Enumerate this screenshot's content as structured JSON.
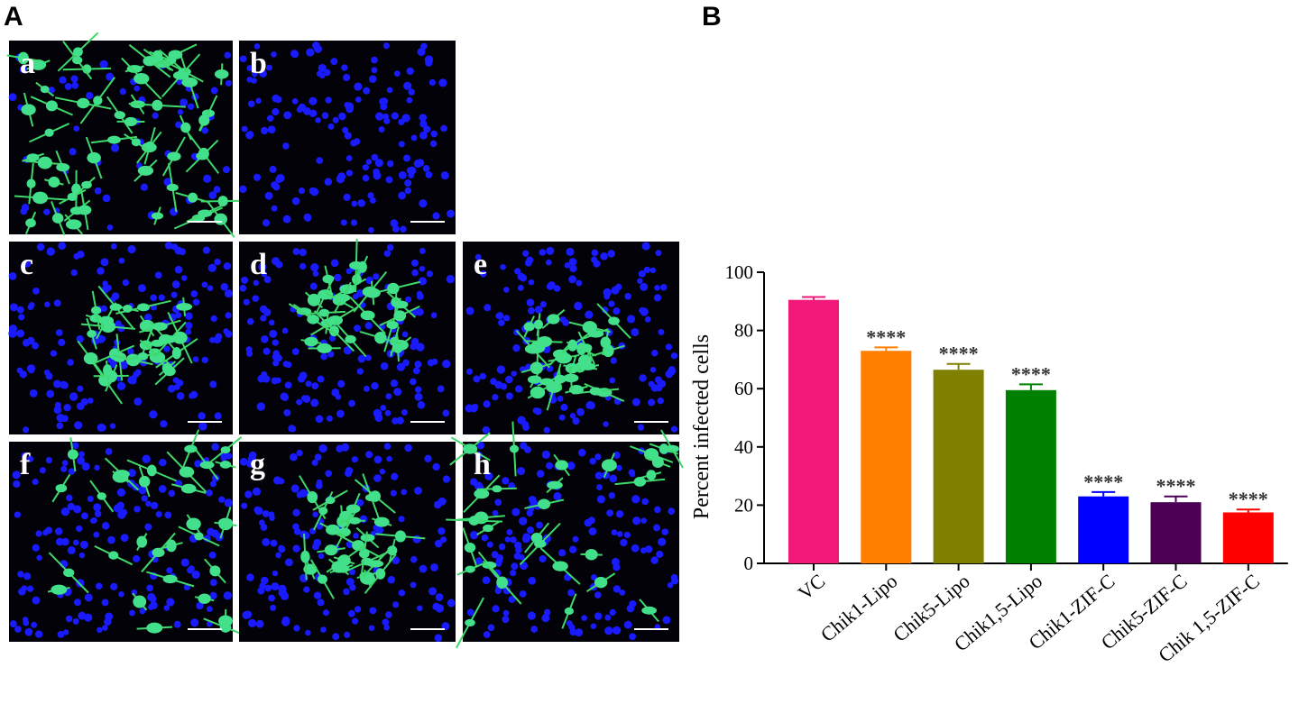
{
  "panel_a": {
    "label": "A",
    "subpanels": [
      "a",
      "b",
      "c",
      "d",
      "e",
      "f",
      "g",
      "h"
    ]
  },
  "panel_b": {
    "label": "B"
  },
  "chart_data": {
    "type": "bar",
    "y_label": "Percent infected cells",
    "categories": [
      "VC",
      "Chik1-Lipo",
      "Chik5-Lipo",
      "Chik1,5-Lipo",
      "Chik1-ZIF-C",
      "Chik5-ZIF-C",
      "Chik 1,5-ZIF-C"
    ],
    "values": [
      90.5,
      73,
      66.5,
      59.5,
      23,
      21,
      17.5
    ],
    "errors": [
      1,
      1.2,
      2,
      2,
      1.5,
      2,
      1
    ],
    "colors": [
      "#f0197a",
      "#ff7f00",
      "#808000",
      "#008000",
      "#0000ff",
      "#4b0055",
      "#ff0000"
    ],
    "significance": [
      null,
      "****",
      "****",
      "****",
      "****",
      "****",
      "****"
    ],
    "ylim": [
      0,
      100
    ],
    "yticks": [
      0,
      20,
      40,
      60,
      80,
      100
    ]
  }
}
